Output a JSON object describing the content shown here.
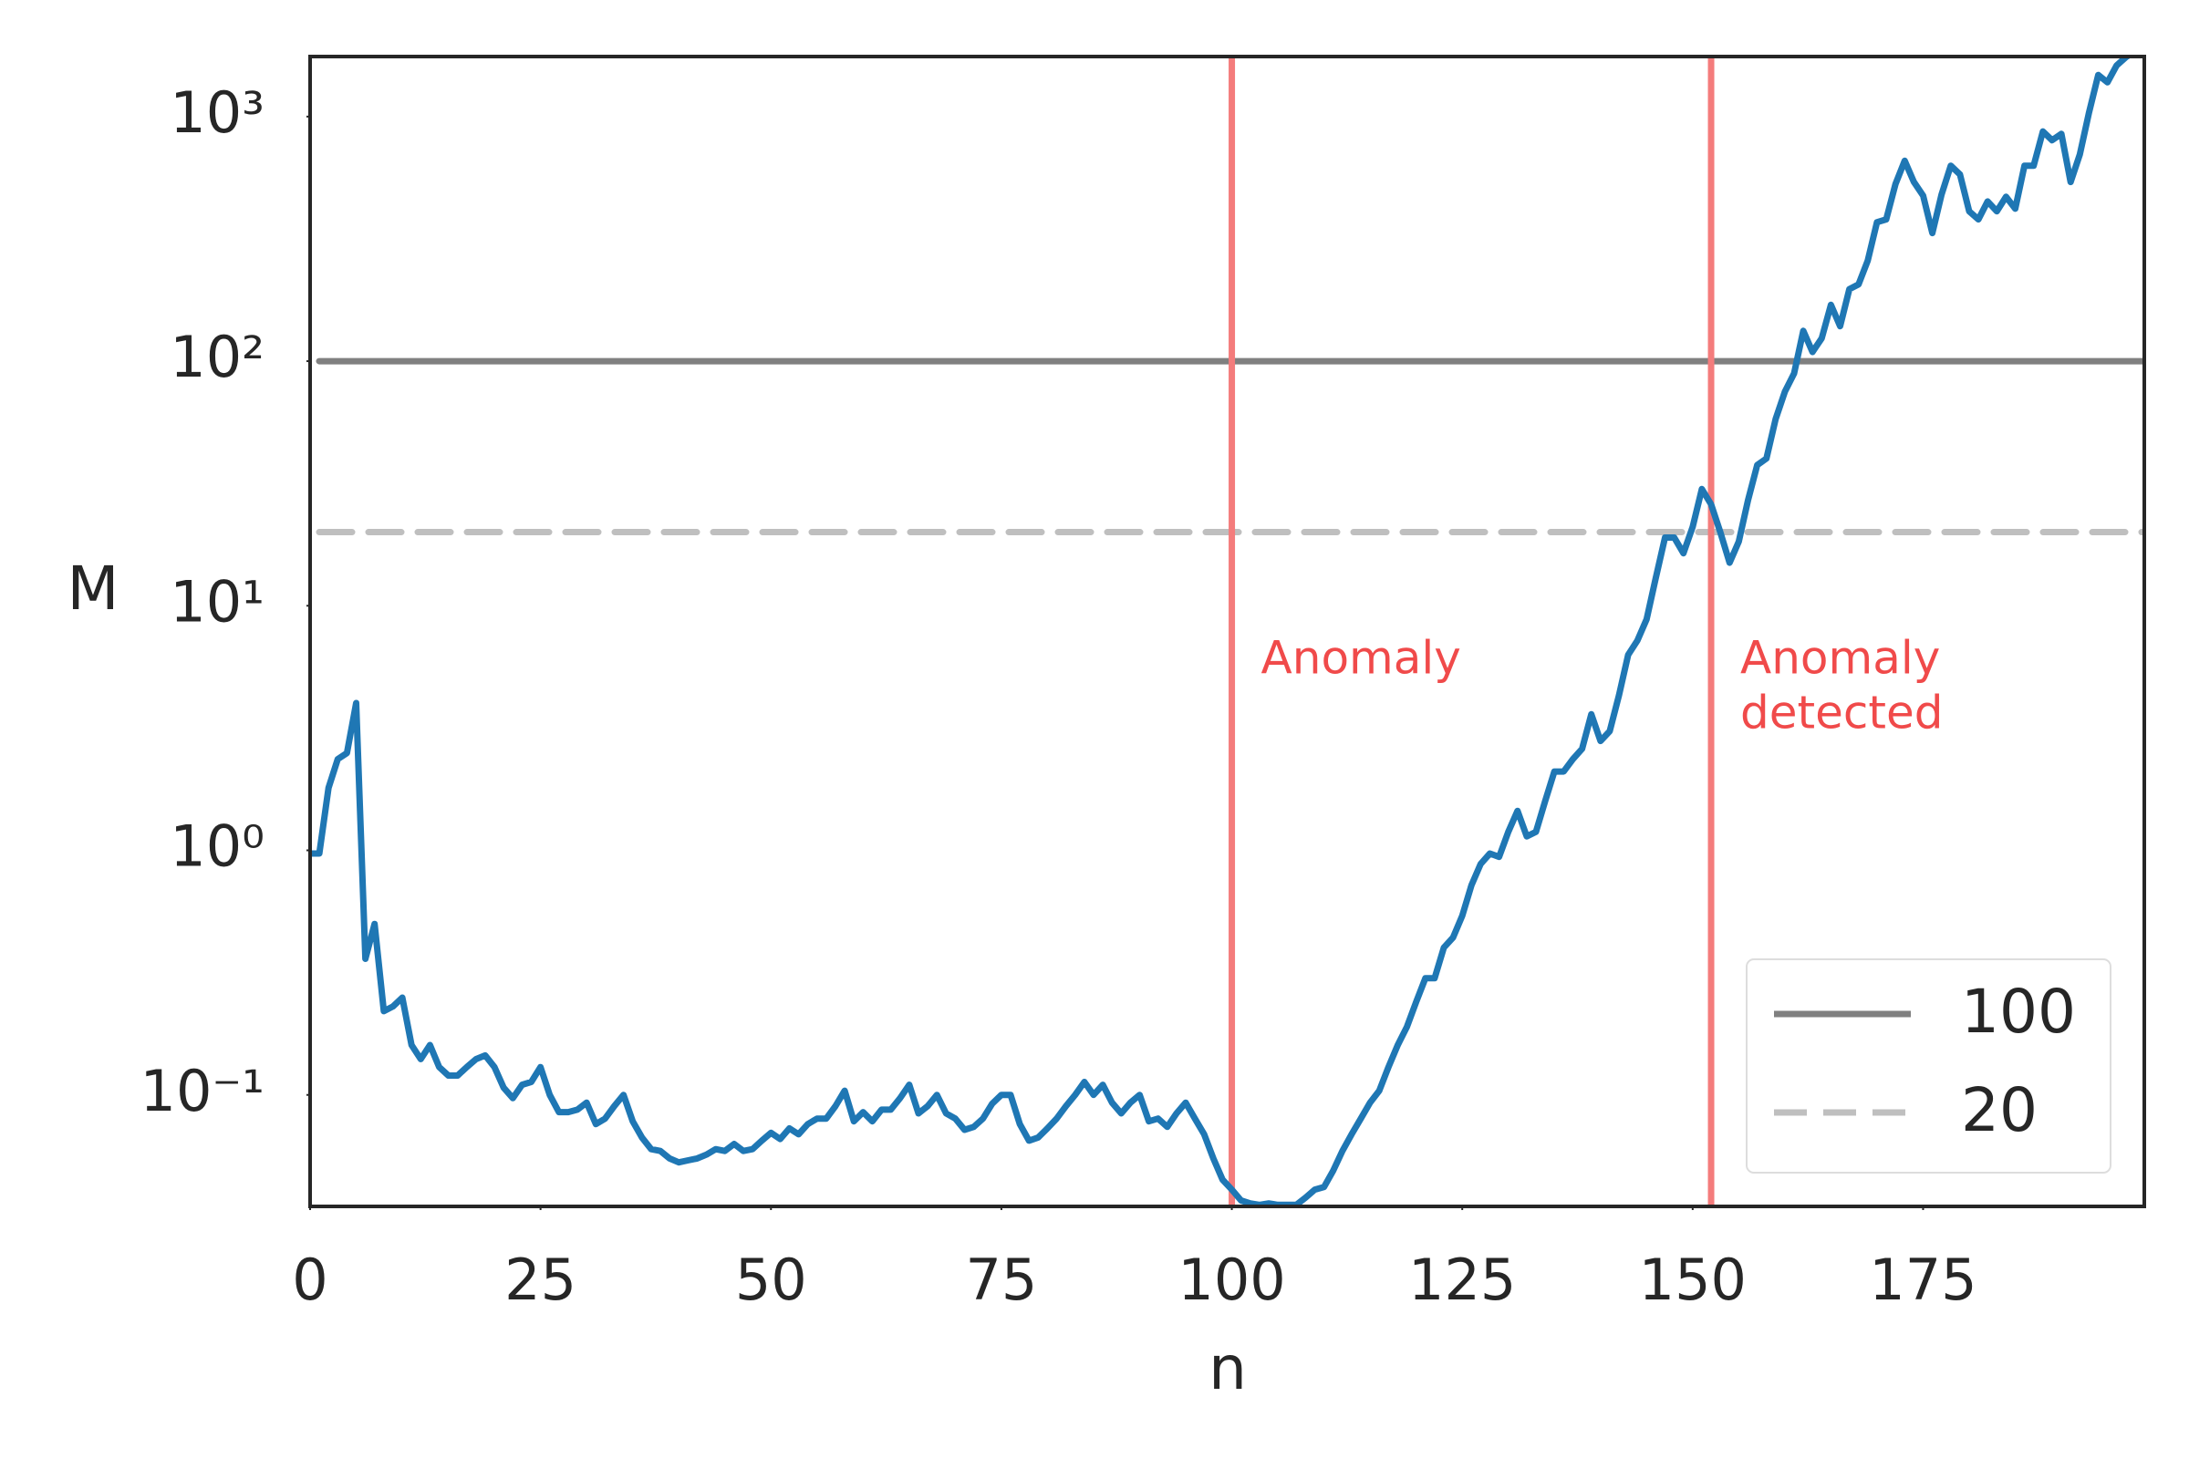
{
  "chart_data": {
    "type": "line",
    "xlabel": "n",
    "ylabel": "M",
    "log_y": true,
    "color": "#1f77b4",
    "x": [
      0,
      1,
      2,
      3,
      4,
      5,
      6,
      7,
      8,
      9,
      10,
      11,
      12,
      13,
      14,
      15,
      16,
      17,
      18,
      19,
      20,
      21,
      22,
      23,
      24,
      25,
      26,
      27,
      28,
      29,
      30,
      31,
      32,
      33,
      34,
      35,
      36,
      37,
      38,
      39,
      40,
      41,
      42,
      43,
      44,
      45,
      46,
      47,
      48,
      49,
      50,
      51,
      52,
      53,
      54,
      55,
      56,
      57,
      58,
      59,
      60,
      61,
      62,
      63,
      64,
      65,
      66,
      67,
      68,
      69,
      70,
      71,
      72,
      73,
      74,
      75,
      76,
      77,
      78,
      79,
      80,
      81,
      82,
      83,
      84,
      85,
      86,
      87,
      88,
      89,
      90,
      91,
      92,
      93,
      94,
      95,
      96,
      97,
      98,
      99,
      100,
      101,
      102,
      103,
      104,
      105,
      106,
      107,
      108,
      109,
      110,
      111,
      112,
      113,
      114,
      115,
      116,
      117,
      118,
      119,
      120,
      121,
      122,
      123,
      124,
      125,
      126,
      127,
      128,
      129,
      130,
      131,
      132,
      133,
      134,
      135,
      136,
      137,
      138,
      139,
      140,
      141,
      142,
      143,
      144,
      145,
      146,
      147,
      148,
      149,
      150,
      151,
      152,
      153,
      154,
      155,
      156,
      157,
      158,
      159,
      160,
      161,
      162,
      163,
      164,
      165,
      166,
      167,
      168,
      169,
      170,
      171,
      172,
      173,
      174,
      175,
      176,
      177,
      178,
      179,
      180,
      181,
      182,
      183,
      184,
      185,
      186,
      187,
      188,
      189,
      190,
      191,
      192,
      193,
      194,
      195,
      196,
      197,
      198,
      199
    ],
    "values": [
      0.97,
      0.97,
      1.8,
      2.36,
      2.5,
      4.0,
      0.36,
      0.5,
      0.22,
      0.23,
      0.25,
      0.16,
      0.14,
      0.16,
      0.13,
      0.12,
      0.12,
      0.13,
      0.14,
      0.145,
      0.13,
      0.107,
      0.097,
      0.11,
      0.113,
      0.13,
      0.1,
      0.085,
      0.085,
      0.087,
      0.093,
      0.076,
      0.08,
      0.09,
      0.1,
      0.078,
      0.067,
      0.06,
      0.059,
      0.055,
      0.053,
      0.054,
      0.055,
      0.057,
      0.06,
      0.059,
      0.063,
      0.059,
      0.06,
      0.065,
      0.07,
      0.066,
      0.073,
      0.069,
      0.076,
      0.08,
      0.08,
      0.09,
      0.104,
      0.078,
      0.085,
      0.078,
      0.087,
      0.087,
      0.097,
      0.11,
      0.084,
      0.09,
      0.1,
      0.084,
      0.08,
      0.072,
      0.074,
      0.08,
      0.092,
      0.1,
      0.1,
      0.076,
      0.065,
      0.067,
      0.073,
      0.08,
      0.09,
      0.1,
      0.113,
      0.1,
      0.11,
      0.093,
      0.084,
      0.093,
      0.1,
      0.078,
      0.08,
      0.074,
      0.084,
      0.093,
      0.08,
      0.069,
      0.055,
      0.045,
      0.041,
      0.037,
      0.036,
      0.0355,
      0.036,
      0.0355,
      0.0355,
      0.0355,
      0.038,
      0.041,
      0.042,
      0.049,
      0.059,
      0.069,
      0.08,
      0.093,
      0.104,
      0.13,
      0.16,
      0.19,
      0.24,
      0.3,
      0.3,
      0.4,
      0.44,
      0.54,
      0.72,
      0.88,
      0.97,
      0.94,
      1.19,
      1.45,
      1.14,
      1.19,
      1.59,
      2.1,
      2.1,
      2.36,
      2.6,
      3.6,
      2.8,
      3.07,
      4.3,
      6.3,
      7.2,
      8.8,
      13,
      19,
      19,
      16.4,
      21,
      30,
      26,
      20,
      15,
      18.3,
      27,
      37.6,
      40,
      58,
      75,
      89,
      133,
      109,
      124,
      170,
      139,
      197,
      206,
      258,
      370,
      380,
      530,
      660,
      540,
      475,
      334,
      480,
      630,
      580,
      410,
      380,
      450,
      410,
      470,
      420,
      630,
      630,
      870,
      800,
      850,
      540,
      700,
      1040,
      1480,
      1380,
      1620,
      1750,
      1850,
      1950
    ],
    "xlim": [
      0,
      199
    ],
    "xticks": [
      0,
      25,
      50,
      75,
      100,
      125,
      150,
      175
    ],
    "ylim": [
      0.035,
      1760
    ],
    "yticks": [
      {
        "value": 0.1,
        "label": "10⁻¹"
      },
      {
        "value": 1,
        "label": "10⁰"
      },
      {
        "value": 10,
        "label": "10¹"
      },
      {
        "value": 100,
        "label": "10²"
      },
      {
        "value": 1000,
        "label": "10³"
      }
    ],
    "hlines": [
      {
        "name": "100",
        "y": 100,
        "color": "#808080",
        "style": "solid"
      },
      {
        "name": "20",
        "y": 20,
        "color": "#bfbfbf",
        "style": "dashed"
      }
    ],
    "vlines": [
      {
        "x": 100,
        "color": "#f47c7c",
        "label_lines": [
          "Anomaly"
        ]
      },
      {
        "x": 152,
        "color": "#f47c7c",
        "label_lines": [
          "Anomaly",
          "detected"
        ]
      }
    ],
    "annotation_color": "#f04a4a",
    "legend": "lower right"
  }
}
